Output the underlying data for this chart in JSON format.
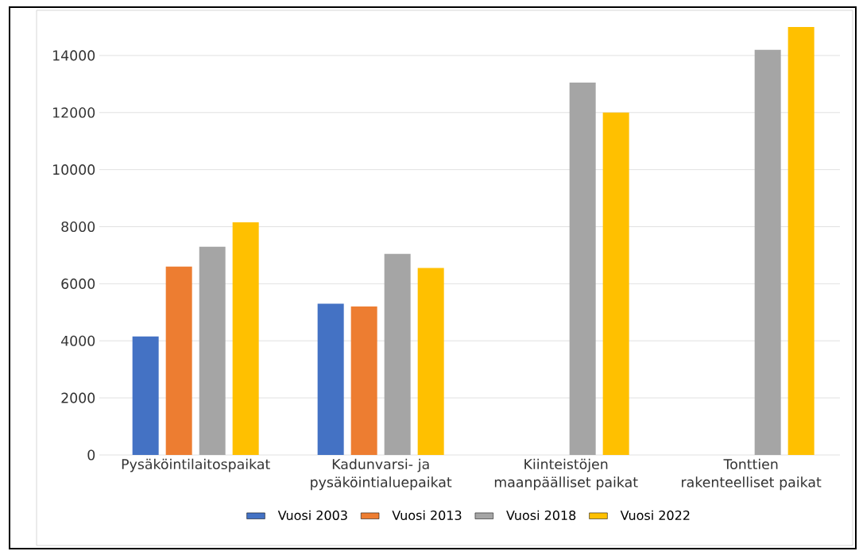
{
  "chart_data": {
    "type": "bar",
    "categories": [
      "Pysäköintilaitospaikat",
      "Kadunvarsi- ja pysäköintialuepaikat",
      "Kiinteistöjen maanpäälliset paikat",
      "Tonttien rakenteelliset paikat"
    ],
    "series": [
      {
        "name": "Vuosi 2003",
        "color": "#4472c4",
        "values": [
          4150,
          5300,
          null,
          null
        ]
      },
      {
        "name": "Vuosi 2013",
        "color": "#ed7d31",
        "values": [
          6600,
          5200,
          null,
          null
        ]
      },
      {
        "name": "Vuosi 2018",
        "color": "#a5a5a5",
        "values": [
          7300,
          7050,
          13050,
          14200
        ]
      },
      {
        "name": "Vuosi 2022",
        "color": "#ffc000",
        "values": [
          8150,
          6550,
          12000,
          15000
        ]
      }
    ],
    "ylim": [
      0,
      15500
    ],
    "yticks": [
      0,
      2000,
      4000,
      6000,
      8000,
      10000,
      12000,
      14000
    ],
    "grid": "y",
    "legend": "bottom"
  }
}
